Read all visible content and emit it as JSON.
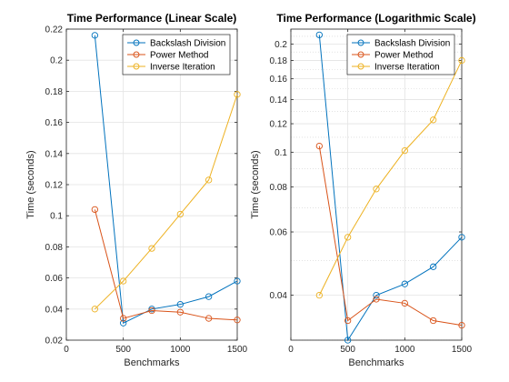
{
  "chart_data": [
    {
      "type": "line",
      "title": "Time Performance (Linear Scale)",
      "xlabel": "Benchmarks",
      "ylabel": "Time (seconds)",
      "xlim": [
        0,
        1500
      ],
      "ylim": [
        0.02,
        0.22
      ],
      "yscale": "linear",
      "grid": true,
      "legend_position": "top-right",
      "x": [
        250,
        500,
        750,
        1000,
        1250,
        1500
      ],
      "xticks": [
        0,
        500,
        1000,
        1500
      ],
      "xtick_labels": [
        "0",
        "500",
        "1000",
        "1500"
      ],
      "yticks": [
        0.02,
        0.04,
        0.06,
        0.08,
        0.1,
        0.12,
        0.14,
        0.16,
        0.18,
        0.2,
        0.22
      ],
      "ytick_labels": [
        "0.02",
        "0.04",
        "0.06",
        "0.08",
        "0.1",
        "0.12",
        "0.14",
        "0.16",
        "0.18",
        "0.2",
        "0.22"
      ],
      "series": [
        {
          "name": "Backslash Division",
          "color": "#0072BD",
          "values": [
            0.216,
            0.031,
            0.04,
            0.043,
            0.048,
            0.058
          ]
        },
        {
          "name": "Power Method",
          "color": "#D95319",
          "values": [
            0.104,
            0.034,
            0.039,
            0.038,
            0.034,
            0.033
          ]
        },
        {
          "name": "Inverse Iteration",
          "color": "#EDB120",
          "values": [
            0.04,
            0.058,
            0.079,
            0.101,
            0.123,
            0.178
          ]
        }
      ]
    },
    {
      "type": "line",
      "title": "Time Performance (Logarithmic Scale)",
      "xlabel": "Benchmarks",
      "ylabel": "Time (seconds)",
      "xlim": [
        0,
        1500
      ],
      "ylim": [
        0.03,
        0.22
      ],
      "yscale": "log",
      "grid": true,
      "legend_position": "top-right",
      "x": [
        250,
        500,
        750,
        1000,
        1250,
        1500
      ],
      "xticks": [
        0,
        500,
        1000,
        1500
      ],
      "xtick_labels": [
        "0",
        "500",
        "1000",
        "1500"
      ],
      "yticks": [
        0.04,
        0.06,
        0.08,
        0.1,
        0.12,
        0.14,
        0.16,
        0.18,
        0.2
      ],
      "ytick_labels": [
        "0.04",
        "0.06",
        "0.08",
        "0.1",
        "0.12",
        "0.14",
        "0.16",
        "0.18",
        "0.2"
      ],
      "series": [
        {
          "name": "Backslash Division",
          "color": "#0072BD",
          "values": [
            0.212,
            0.03,
            0.04,
            0.043,
            0.048,
            0.058
          ]
        },
        {
          "name": "Power Method",
          "color": "#D95319",
          "values": [
            0.104,
            0.034,
            0.039,
            0.038,
            0.034,
            0.033
          ]
        },
        {
          "name": "Inverse Iteration",
          "color": "#EDB120",
          "values": [
            0.04,
            0.058,
            0.079,
            0.101,
            0.123,
            0.18
          ]
        }
      ]
    }
  ]
}
